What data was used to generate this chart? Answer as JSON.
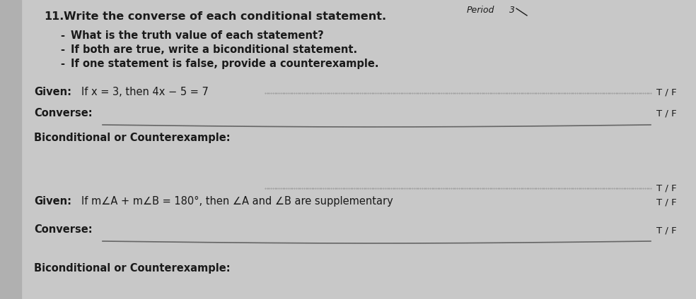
{
  "bg_color": "#c8c8c8",
  "paper_color": "#e2e2df",
  "title_number": "11.",
  "title_text": "Write the converse of each conditional statement.",
  "bullets": [
    "What is the truth value of each statement?",
    "If both are true, write a biconditional statement.",
    "If one statement is false, provide a counterexample."
  ],
  "period_label": "Period",
  "period_value": "3",
  "given1_label": "Given:",
  "given1_text": "If x = 3, then 4x − 5 = 7",
  "tf": "T / F",
  "converse1_label": "Converse:",
  "bicond1_label": "Biconditional or Counterexample:",
  "given2_label": "Given:",
  "given2_text": "If m∠A + m∠B = 180°, then ∠A and ∠B are supplementary",
  "converse2_label": "Converse:",
  "bicond2_label": "Biconditional or Counterexample:",
  "font_size_title": 11.5,
  "font_size_body": 10.5,
  "font_size_tf": 9.5,
  "text_color": "#1a1a1a",
  "line_color": "#666666",
  "dotted_color": "#999999"
}
